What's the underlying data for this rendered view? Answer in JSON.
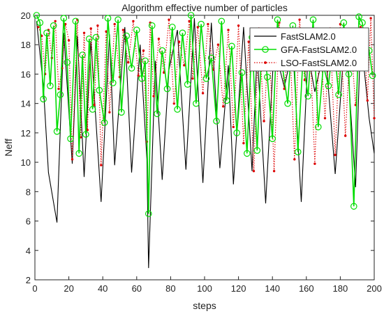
{
  "chart_data": {
    "type": "line",
    "title": "Algorithm effective number of particles",
    "xlabel": "steps",
    "ylabel": "Neff",
    "xlim": [
      0,
      200
    ],
    "ylim": [
      2,
      20
    ],
    "x_ticks": [
      "0",
      "20",
      "40",
      "60",
      "80",
      "100",
      "120",
      "140",
      "160",
      "180",
      "200"
    ],
    "y_ticks": [
      "2",
      "4",
      "6",
      "8",
      "10",
      "12",
      "14",
      "16",
      "18",
      "20"
    ],
    "grid": false,
    "legend_position": "top-right",
    "series": [
      {
        "name": "FastSLAM2.0",
        "color": "#000000",
        "style": "solid",
        "marker": "none",
        "x": [
          1,
          5,
          8,
          13,
          17,
          22,
          25,
          29,
          33,
          39,
          44,
          47,
          53,
          57,
          62,
          66,
          67,
          71,
          75,
          79,
          84,
          89,
          94,
          99,
          104,
          109,
          114,
          117,
          123,
          128,
          131,
          136,
          141,
          147,
          152,
          157,
          161,
          165,
          171,
          177,
          183,
          189,
          192,
          197,
          200
        ],
        "y": [
          19.6,
          15.2,
          9.3,
          5.9,
          18.8,
          9.9,
          18.6,
          9.0,
          18.2,
          7.3,
          18.7,
          9.8,
          19.2,
          9.3,
          18.0,
          10.2,
          2.8,
          16.9,
          8.8,
          16.3,
          19.0,
          9.5,
          19.8,
          8.6,
          19.5,
          9.6,
          16.6,
          8.5,
          19.2,
          9.4,
          17.5,
          7.2,
          17.9,
          15.1,
          17.8,
          7.3,
          17.4,
          14.8,
          17.9,
          9.2,
          19.1,
          8.3,
          18.7,
          13.0,
          10.6
        ]
      },
      {
        "name": "GFA-FastSLAM2.0",
        "color": "#00dd00",
        "style": "solid",
        "marker": "circle",
        "x": [
          1,
          3,
          5,
          7,
          9,
          11,
          13,
          15,
          17,
          19,
          21,
          24,
          26,
          28,
          30,
          32,
          34,
          36,
          38,
          41,
          43,
          46,
          49,
          51,
          54,
          57,
          60,
          63,
          65,
          67,
          69,
          72,
          75,
          78,
          81,
          84,
          87,
          90,
          92,
          95,
          98,
          101,
          104,
          107,
          110,
          113,
          116,
          119,
          122,
          125,
          128,
          131,
          134,
          137,
          140,
          143,
          146,
          149,
          152,
          155,
          158,
          161,
          164,
          167,
          170,
          173,
          176,
          179,
          182,
          185,
          188,
          191,
          193,
          195,
          197,
          199
        ],
        "y": [
          20,
          19.5,
          14.3,
          18.8,
          15.2,
          19.3,
          12.1,
          14.6,
          19.8,
          16.8,
          11.6,
          19.6,
          10.6,
          17.3,
          11.9,
          18.4,
          13.6,
          18.5,
          14.9,
          12.7,
          19.8,
          15.4,
          19.7,
          13.4,
          18.6,
          16.4,
          19.0,
          15.7,
          16.9,
          6.5,
          19.3,
          13.3,
          17.6,
          15.0,
          19.2,
          13.6,
          18.8,
          15.3,
          20.0,
          14.0,
          19.4,
          15.7,
          17.1,
          12.8,
          19.6,
          14.2,
          17.9,
          12.0,
          16.1,
          10.6,
          18.5,
          10.8,
          18.6,
          15.8,
          11.6,
          19.7,
          16.4,
          14.0,
          19.3,
          10.7,
          17.0,
          14.5,
          19.7,
          12.4,
          16.6,
          15.2,
          18.4,
          14.6,
          19.5,
          16.0,
          7.0,
          19.9,
          19.5,
          17.0,
          17.6,
          15.9
        ]
      },
      {
        "name": "LSO-FastSLAM2.0",
        "color": "#dd0000",
        "style": "dotted",
        "marker": "point",
        "x": [
          2,
          4,
          6,
          8,
          10,
          12,
          14,
          16,
          18,
          20,
          22,
          25,
          27,
          29,
          31,
          33,
          35,
          37,
          39,
          42,
          44,
          47,
          50,
          52,
          55,
          58,
          61,
          64,
          66,
          68,
          70,
          73,
          76,
          79,
          82,
          85,
          88,
          91,
          93,
          96,
          99,
          102,
          105,
          108,
          111,
          114,
          117,
          120,
          123,
          126,
          129,
          132,
          135,
          138,
          141,
          144,
          147,
          150,
          153,
          156,
          159,
          162,
          165,
          168,
          171,
          174,
          177,
          180,
          183,
          186,
          189,
          192,
          194,
          196,
          198,
          200
        ],
        "y": [
          19.2,
          18.6,
          16.0,
          19.0,
          17.1,
          19.6,
          15.0,
          16.4,
          19.4,
          18.3,
          10.2,
          19.7,
          11.7,
          18.8,
          12.2,
          19.1,
          13.9,
          19.3,
          9.8,
          18.9,
          13.4,
          19.4,
          15.8,
          19.0,
          16.8,
          19.6,
          15.9,
          17.6,
          11.4,
          19.5,
          14.5,
          18.4,
          16.1,
          19.7,
          14.0,
          18.2,
          16.6,
          19.6,
          15.7,
          19.2,
          14.7,
          19.4,
          16.3,
          18.0,
          13.8,
          19.0,
          12.4,
          19.3,
          11.3,
          18.2,
          9.4,
          19.1,
          12.8,
          18.7,
          9.4,
          19.5,
          15.0,
          18.9,
          10.2,
          19.7,
          15.6,
          18.4,
          9.9,
          18.9,
          13.0,
          19.1,
          10.5,
          19.4,
          11.8,
          18.6,
          13.9,
          19.2,
          18.7,
          14.2,
          19.8,
          13.0
        ]
      }
    ]
  }
}
